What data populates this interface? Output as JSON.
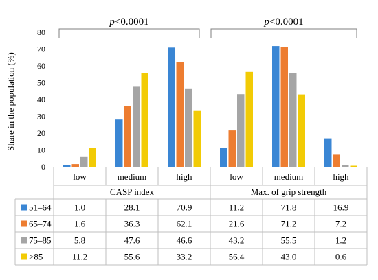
{
  "chart_data": {
    "type": "bar",
    "ylabel": "Share in the population (%)",
    "ylim": [
      0,
      80
    ],
    "yticks": [
      0,
      10,
      20,
      30,
      40,
      50,
      60,
      70,
      80
    ],
    "grid": false,
    "categories": [
      "low",
      "medium",
      "high",
      "low",
      "medium",
      "high"
    ],
    "groups": [
      {
        "label": "CASP index",
        "categories": [
          "low",
          "medium",
          "high"
        ]
      },
      {
        "label": "Max. of grip strength",
        "categories": [
          "low",
          "medium",
          "high"
        ]
      }
    ],
    "series": [
      {
        "name": "51–64",
        "color": "#3a86d4",
        "values": [
          1.0,
          28.1,
          70.9,
          11.2,
          71.8,
          16.9
        ],
        "labels": [
          "1.0",
          "28.1",
          "70.9",
          "11.2",
          "71.8",
          "16.9"
        ]
      },
      {
        "name": "65–74",
        "color": "#ed7d31",
        "values": [
          1.6,
          36.3,
          62.1,
          21.6,
          71.2,
          7.2
        ],
        "labels": [
          "1.6",
          "36.3",
          "62.1",
          "21.6",
          "71.2",
          "7.2"
        ]
      },
      {
        "name": "75–85",
        "color": "#a5a5a5",
        "values": [
          5.8,
          47.6,
          46.6,
          43.2,
          55.5,
          1.2
        ],
        "labels": [
          "5.8",
          "47.6",
          "46.6",
          "43.2",
          "55.5",
          "1.2"
        ]
      },
      {
        "name": ">85",
        "color": "#f2cb05",
        "values": [
          11.2,
          55.6,
          33.2,
          56.4,
          43.0,
          0.6
        ],
        "labels": [
          "11.2",
          "55.6",
          "33.2",
          "56.4",
          "43.0",
          "0.6"
        ]
      }
    ],
    "annotations": [
      {
        "p_label": "p",
        "text": "<0.0001",
        "group": 0
      },
      {
        "p_label": "p",
        "text": "<0.0001",
        "group": 1
      }
    ]
  }
}
